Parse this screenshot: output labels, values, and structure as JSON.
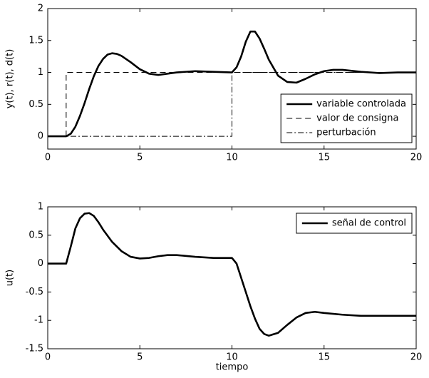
{
  "chart_data": [
    {
      "type": "line",
      "ylabel": "y(t), r(t), d(t)",
      "xlim": [
        0,
        20
      ],
      "xticks": [
        0,
        5,
        10,
        15,
        20
      ],
      "ylim": [
        -0.2,
        2
      ],
      "yticks": [
        0,
        0.5,
        1,
        1.5,
        2
      ],
      "legend": "lower right",
      "series": [
        {
          "name": "variable controlada",
          "color": "#000000",
          "dash": "solid",
          "x": [
            0,
            1,
            1.25,
            1.5,
            1.75,
            2,
            2.25,
            2.5,
            2.75,
            3,
            3.25,
            3.5,
            3.75,
            4,
            4.5,
            5,
            5.5,
            6,
            6.5,
            7,
            8,
            9,
            10,
            10.25,
            10.5,
            10.75,
            11,
            11.25,
            11.5,
            11.75,
            12,
            12.5,
            13,
            13.5,
            14,
            14.5,
            15,
            15.5,
            16,
            17,
            18,
            19,
            20
          ],
          "values": [
            0,
            0,
            0.04,
            0.15,
            0.32,
            0.52,
            0.74,
            0.94,
            1.1,
            1.21,
            1.28,
            1.3,
            1.29,
            1.26,
            1.16,
            1.05,
            0.98,
            0.96,
            0.98,
            1.0,
            1.02,
            1.01,
            1.0,
            1.08,
            1.25,
            1.48,
            1.64,
            1.64,
            1.53,
            1.37,
            1.2,
            0.95,
            0.85,
            0.84,
            0.9,
            0.97,
            1.02,
            1.04,
            1.04,
            1.01,
            0.99,
            1.0,
            1.0
          ]
        },
        {
          "name": "valor de consigna",
          "color": "#000000",
          "dash": "dashed",
          "x": [
            0,
            1,
            1,
            20
          ],
          "values": [
            0,
            0,
            1,
            1
          ]
        },
        {
          "name": "perturbación",
          "color": "#000000",
          "dash": "dashdot",
          "x": [
            0,
            10,
            10,
            20
          ],
          "values": [
            0,
            0,
            1,
            1
          ]
        }
      ]
    },
    {
      "type": "line",
      "ylabel": "u(t)",
      "xlabel": "tiempo",
      "xlim": [
        0,
        20
      ],
      "xticks": [
        0,
        5,
        10,
        15,
        20
      ],
      "ylim": [
        -1.5,
        1
      ],
      "yticks": [
        -1.5,
        -1,
        -0.5,
        0,
        0.5,
        1
      ],
      "legend": "upper right",
      "series": [
        {
          "name": "señal de control",
          "color": "#000000",
          "dash": "solid",
          "x": [
            0,
            1,
            1.25,
            1.5,
            1.75,
            2,
            2.25,
            2.5,
            2.75,
            3,
            3.5,
            4,
            4.5,
            5,
            5.5,
            6,
            6.5,
            7,
            8,
            9,
            10,
            10.25,
            10.5,
            10.75,
            11,
            11.25,
            11.5,
            11.75,
            12,
            12.5,
            13,
            13.5,
            14,
            14.5,
            15,
            16,
            17,
            18,
            20
          ],
          "values": [
            0,
            0,
            0.3,
            0.62,
            0.8,
            0.88,
            0.89,
            0.84,
            0.73,
            0.6,
            0.38,
            0.22,
            0.12,
            0.09,
            0.1,
            0.13,
            0.15,
            0.15,
            0.12,
            0.1,
            0.1,
            0.0,
            -0.25,
            -0.5,
            -0.75,
            -0.97,
            -1.15,
            -1.24,
            -1.27,
            -1.22,
            -1.08,
            -0.95,
            -0.87,
            -0.85,
            -0.87,
            -0.9,
            -0.92,
            -0.92,
            -0.92
          ]
        }
      ]
    }
  ]
}
